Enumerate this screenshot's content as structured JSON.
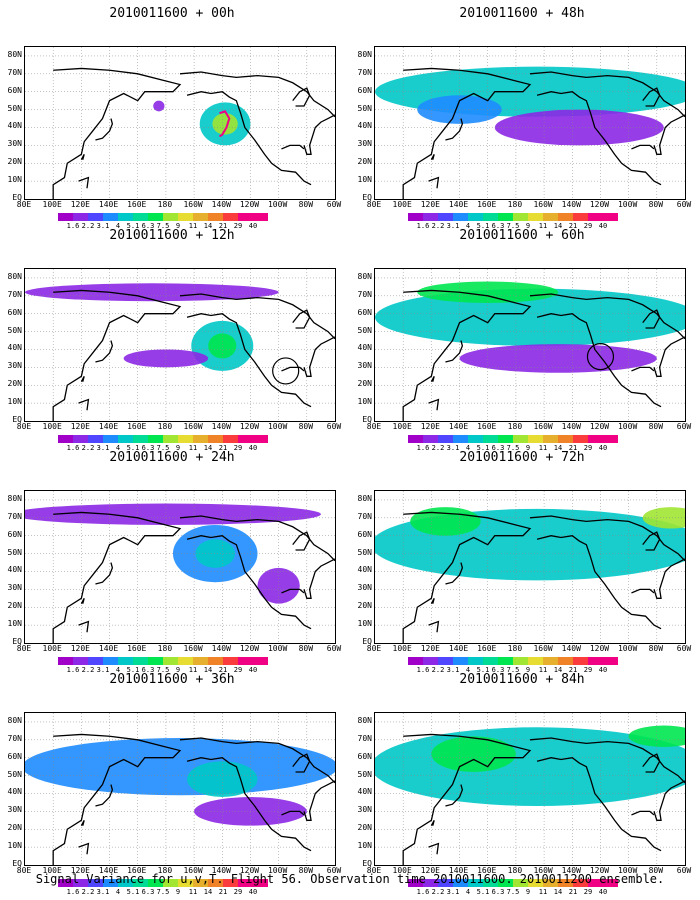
{
  "panels": [
    {
      "title": "2010011600 + 00h",
      "blobs": [
        {
          "lon": 222,
          "lat": 42,
          "rx": 18,
          "ry": 12,
          "level": 4
        },
        {
          "lon": 222,
          "lat": 42,
          "rx": 9,
          "ry": 6,
          "level": 7
        },
        {
          "lon": 175,
          "lat": 52,
          "rx": 4,
          "ry": 3,
          "level": 1
        }
      ],
      "circles": [],
      "track": true
    },
    {
      "title": "2010011600 + 48h",
      "blobs": [
        {
          "lon": 195,
          "lat": 60,
          "rx": 115,
          "ry": 14,
          "level": 4
        },
        {
          "lon": 225,
          "lat": 40,
          "rx": 60,
          "ry": 10,
          "level": 1
        },
        {
          "lon": 140,
          "lat": 50,
          "rx": 30,
          "ry": 8,
          "level": 3
        }
      ],
      "circles": [],
      "track": false
    },
    {
      "title": "2010011600 + 12h",
      "blobs": [
        {
          "lon": 220,
          "lat": 42,
          "rx": 22,
          "ry": 14,
          "level": 4
        },
        {
          "lon": 220,
          "lat": 42,
          "rx": 10,
          "ry": 7,
          "level": 6
        },
        {
          "lon": 180,
          "lat": 35,
          "rx": 30,
          "ry": 5,
          "level": 1
        },
        {
          "lon": 170,
          "lat": 72,
          "rx": 90,
          "ry": 5,
          "level": 1
        }
      ],
      "circles": [
        {
          "lon": 265,
          "lat": 28
        }
      ],
      "track": false
    },
    {
      "title": "2010011600 + 60h",
      "blobs": [
        {
          "lon": 195,
          "lat": 58,
          "rx": 115,
          "ry": 16,
          "level": 4
        },
        {
          "lon": 210,
          "lat": 35,
          "rx": 70,
          "ry": 8,
          "level": 1
        },
        {
          "lon": 160,
          "lat": 72,
          "rx": 50,
          "ry": 6,
          "level": 6
        }
      ],
      "circles": [
        {
          "lon": 240,
          "lat": 36
        }
      ],
      "track": false
    },
    {
      "title": "2010011600 + 24h",
      "blobs": [
        {
          "lon": 215,
          "lat": 50,
          "rx": 30,
          "ry": 16,
          "level": 3
        },
        {
          "lon": 215,
          "lat": 50,
          "rx": 14,
          "ry": 8,
          "level": 4
        },
        {
          "lon": 180,
          "lat": 72,
          "rx": 110,
          "ry": 6,
          "level": 1
        },
        {
          "lon": 260,
          "lat": 32,
          "rx": 15,
          "ry": 10,
          "level": 1
        }
      ],
      "circles": [],
      "track": false
    },
    {
      "title": "2010011600 + 72h",
      "blobs": [
        {
          "lon": 195,
          "lat": 55,
          "rx": 118,
          "ry": 20,
          "level": 4
        },
        {
          "lon": 130,
          "lat": 68,
          "rx": 25,
          "ry": 8,
          "level": 6
        },
        {
          "lon": 290,
          "lat": 70,
          "rx": 20,
          "ry": 6,
          "level": 7
        }
      ],
      "circles": [],
      "track": false
    },
    {
      "title": "2010011600 + 36h",
      "blobs": [
        {
          "lon": 190,
          "lat": 55,
          "rx": 112,
          "ry": 16,
          "level": 3
        },
        {
          "lon": 220,
          "lat": 48,
          "rx": 25,
          "ry": 10,
          "level": 4
        },
        {
          "lon": 240,
          "lat": 30,
          "rx": 40,
          "ry": 8,
          "level": 1
        }
      ],
      "circles": [],
      "track": false
    },
    {
      "title": "2010011600 + 84h",
      "blobs": [
        {
          "lon": 195,
          "lat": 55,
          "rx": 118,
          "ry": 22,
          "level": 4
        },
        {
          "lon": 150,
          "lat": 62,
          "rx": 30,
          "ry": 10,
          "level": 6
        },
        {
          "lon": 285,
          "lat": 72,
          "rx": 25,
          "ry": 6,
          "level": 6
        }
      ],
      "circles": [],
      "track": false
    }
  ],
  "lat_labels": [
    "80N",
    "70N",
    "60N",
    "50N",
    "40N",
    "30N",
    "20N",
    "10N",
    "EQ"
  ],
  "lon_labels": [
    "80E",
    "100E",
    "120E",
    "140E",
    "160E",
    "180",
    "160W",
    "140W",
    "120W",
    "100W",
    "80W",
    "60W"
  ],
  "colorbar": {
    "labels": [
      "1.6",
      "2.2",
      "3.1",
      "4",
      "5.1",
      "6.3",
      "7.5",
      "9",
      "11",
      "14",
      "21",
      "29",
      "40"
    ],
    "colors": [
      "#a000c8",
      "#8c28e6",
      "#5046ff",
      "#1e8cff",
      "#00c8c8",
      "#00dc96",
      "#00e650",
      "#a0e632",
      "#e6dc32",
      "#e6af2d",
      "#f08228",
      "#fa3c3c",
      "#f00082"
    ]
  },
  "caption": "Signal Variance for u,v,T. Flight 56. Observation time 2010011600. 2010011200 ensemble."
}
